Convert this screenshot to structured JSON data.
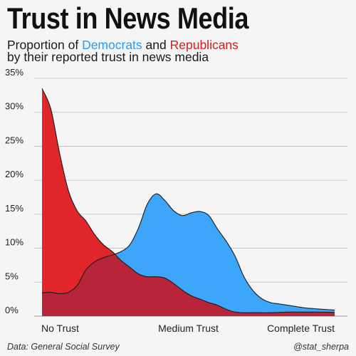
{
  "title": "Trust in News Media",
  "subtitle": {
    "line1_prefix": "Proportion of ",
    "dem_word": "Democrats",
    "line1_mid": " and ",
    "rep_word": "Republicans",
    "line2": "by their reported trust in news media"
  },
  "footer": {
    "source": "Data: General Social Survey",
    "handle": "@stat_sherpa"
  },
  "colors": {
    "democrats": "#3ea6fa",
    "republicans": "#e0262a",
    "overlap": "#b8243a",
    "grid": "#bdbdbd"
  },
  "chart_data": {
    "type": "area",
    "title": "Trust in News Media",
    "xlabel": "",
    "ylabel": "",
    "x_tick_labels": [
      "No Trust",
      "Medium Trust",
      "Complete Trust"
    ],
    "x": [
      0,
      0.03,
      0.06,
      0.09,
      0.12,
      0.15,
      0.18,
      0.21,
      0.24,
      0.27,
      0.3,
      0.33,
      0.36,
      0.39,
      0.42,
      0.45,
      0.48,
      0.51,
      0.54,
      0.57,
      0.6,
      0.63,
      0.66,
      0.69,
      0.72,
      0.75,
      0.78,
      0.81,
      0.84,
      0.87,
      0.9,
      0.93,
      0.96,
      1
    ],
    "series": [
      {
        "name": "Democrats",
        "values": [
          3.4,
          3.5,
          3.3,
          3.5,
          4.5,
          6.8,
          8.0,
          8.6,
          9.0,
          9.5,
          10.5,
          13.0,
          16.5,
          18.0,
          17.0,
          15.5,
          14.8,
          15.2,
          15.4,
          14.8,
          12.8,
          11.0,
          8.8,
          5.8,
          3.8,
          2.6,
          2.0,
          1.8,
          1.6,
          1.4,
          1.2,
          1.1,
          1.0,
          0.9
        ],
        "color": "#3ea6fa"
      },
      {
        "name": "Republicans",
        "values": [
          33.5,
          30.5,
          24.0,
          18.5,
          15.5,
          14.0,
          12.0,
          10.5,
          9.5,
          8.2,
          7.2,
          6.2,
          5.8,
          5.8,
          5.6,
          4.8,
          3.8,
          3.0,
          2.5,
          2.0,
          1.6,
          1.0,
          0.6,
          0.5,
          0.5,
          0.5,
          0.5,
          0.55,
          0.6,
          0.6,
          0.6,
          0.6,
          0.6,
          0.55
        ],
        "color": "#e0262a"
      }
    ],
    "ylim": [
      0,
      35
    ],
    "y_ticks": [
      0,
      5,
      10,
      15,
      20,
      25,
      30,
      35
    ],
    "y_tick_labels": [
      "0%",
      "5%",
      "10%",
      "15%",
      "20%",
      "25%",
      "30%",
      "35%"
    ],
    "grid": "horizontal",
    "legend": "subtitle"
  }
}
